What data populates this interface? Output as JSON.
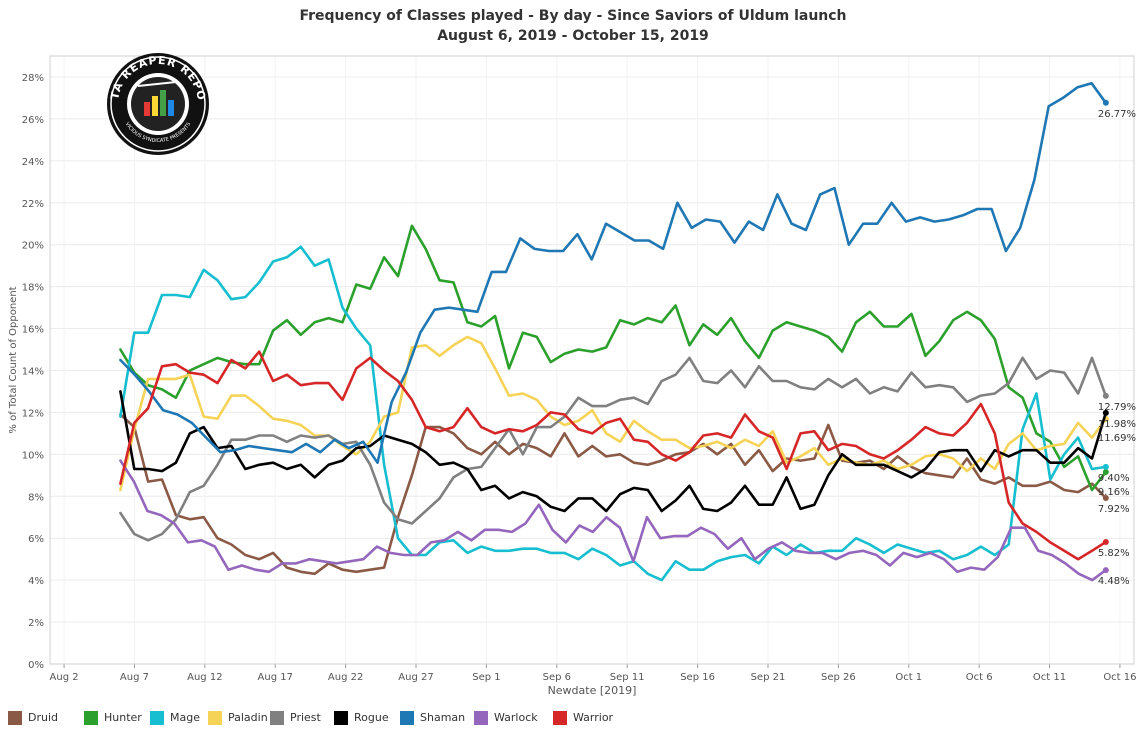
{
  "chart_data": {
    "type": "line",
    "title": "Frequency of Classes played - By day - Since Saviors of Uldum launch",
    "subtitle": "August 6, 2019 - October 15, 2019",
    "xlabel": "Newdate [2019]",
    "ylabel": "% of Total Count of Opponent",
    "x_start": "2019-08-06",
    "x_end": "2019-10-15",
    "xlim": [
      "2019-08-01",
      "2019-10-17"
    ],
    "ylim": [
      0,
      29
    ],
    "x_ticks": [
      "Aug 2",
      "Aug 7",
      "Aug 12",
      "Aug 17",
      "Aug 22",
      "Aug 27",
      "Sep 1",
      "Sep 6",
      "Sep 11",
      "Sep 16",
      "Sep 21",
      "Sep 26",
      "Oct 1",
      "Oct 6",
      "Oct 11",
      "Oct 16"
    ],
    "y_ticks": [
      "0%",
      "2%",
      "4%",
      "6%",
      "8%",
      "10%",
      "12%",
      "14%",
      "16%",
      "18%",
      "20%",
      "22%",
      "24%",
      "26%",
      "28%"
    ],
    "grid": true,
    "legend_position": "bottom",
    "series": [
      {
        "name": "Druid",
        "color": "#8B5A46",
        "end_label": "7.92%",
        "values": [
          11.9,
          11.3,
          8.7,
          8.8,
          7.1,
          6.9,
          7.0,
          6.0,
          5.7,
          5.2,
          5.0,
          5.3,
          4.6,
          4.4,
          4.3,
          4.8,
          4.5,
          4.4,
          4.5,
          4.6,
          7.0,
          9.0,
          11.3,
          11.3,
          11.0,
          10.3,
          10.0,
          10.6,
          10.0,
          10.5,
          10.3,
          9.9,
          11.0,
          9.9,
          10.4,
          9.9,
          10.0,
          9.6,
          9.5,
          9.7,
          10.0,
          10.1,
          10.5,
          10.0,
          10.5,
          9.5,
          10.2,
          9.2,
          9.8,
          9.7,
          9.8,
          11.4,
          9.7,
          9.6,
          9.7,
          9.3,
          9.9,
          9.4,
          9.1,
          9.0,
          8.9,
          9.8,
          8.8,
          8.6,
          8.9,
          8.5,
          8.5,
          8.7,
          8.3,
          8.2,
          8.6,
          7.92
        ]
      },
      {
        "name": "Hunter",
        "color": "#2CA02C",
        "end_label": "9.16%",
        "values": [
          15.0,
          13.9,
          13.3,
          13.1,
          12.7,
          14.0,
          14.3,
          14.6,
          14.4,
          14.3,
          14.3,
          15.9,
          16.4,
          15.7,
          16.3,
          16.5,
          16.3,
          18.1,
          17.9,
          19.4,
          18.5,
          20.9,
          19.8,
          18.3,
          18.2,
          16.3,
          16.1,
          16.6,
          14.1,
          15.8,
          15.6,
          14.4,
          14.8,
          15.0,
          14.9,
          15.1,
          16.4,
          16.2,
          16.5,
          16.3,
          17.1,
          15.2,
          16.2,
          15.7,
          16.5,
          15.4,
          14.6,
          15.9,
          16.3,
          16.1,
          15.9,
          15.6,
          14.9,
          16.3,
          16.8,
          16.1,
          16.1,
          16.7,
          14.7,
          15.4,
          16.4,
          16.8,
          16.4,
          15.5,
          13.2,
          12.7,
          11.0,
          10.6,
          9.4,
          9.9,
          8.3,
          9.16
        ]
      },
      {
        "name": "Mage",
        "color": "#17BECF",
        "end_label": "9.40%",
        "values": [
          11.8,
          15.8,
          15.8,
          17.6,
          17.6,
          17.5,
          18.8,
          18.3,
          17.4,
          17.5,
          18.2,
          19.2,
          19.4,
          19.9,
          19.0,
          19.3,
          17.0,
          16.0,
          15.2,
          9.5,
          6.0,
          5.2,
          5.2,
          5.8,
          5.9,
          5.3,
          5.6,
          5.4,
          5.4,
          5.5,
          5.5,
          5.3,
          5.3,
          5.0,
          5.5,
          5.2,
          4.7,
          4.9,
          4.3,
          4.0,
          4.9,
          4.5,
          4.5,
          4.9,
          5.1,
          5.2,
          4.8,
          5.6,
          5.2,
          5.7,
          5.3,
          5.4,
          5.4,
          6.0,
          5.7,
          5.3,
          5.7,
          5.5,
          5.3,
          5.4,
          5.0,
          5.2,
          5.6,
          5.2,
          5.7,
          11.2,
          12.9,
          8.8,
          10.0,
          10.8,
          9.3,
          9.4
        ]
      },
      {
        "name": "Paladin",
        "color": "#F5D357",
        "end_label": "11.69%",
        "values": [
          8.3,
          11.2,
          13.6,
          13.6,
          13.6,
          13.8,
          11.8,
          11.7,
          12.8,
          12.8,
          12.3,
          11.7,
          11.6,
          11.4,
          10.9,
          10.9,
          10.4,
          10.0,
          10.6,
          11.8,
          12.0,
          15.1,
          15.2,
          14.7,
          15.2,
          15.6,
          15.3,
          14.1,
          12.8,
          12.9,
          12.6,
          11.8,
          11.4,
          11.6,
          12.1,
          11.0,
          10.6,
          11.6,
          11.1,
          10.7,
          10.7,
          10.3,
          10.4,
          10.6,
          10.3,
          10.7,
          10.4,
          11.1,
          9.6,
          9.9,
          10.3,
          9.5,
          9.8,
          9.6,
          9.5,
          9.7,
          9.3,
          9.5,
          9.9,
          10.0,
          9.8,
          9.2,
          9.8,
          9.3,
          10.5,
          11.0,
          10.2,
          10.4,
          10.5,
          11.5,
          10.8,
          11.69
        ]
      },
      {
        "name": "Priest",
        "color": "#808080",
        "end_label": "12.79%",
        "values": [
          7.2,
          6.2,
          5.9,
          6.2,
          6.9,
          8.2,
          8.5,
          9.5,
          10.7,
          10.7,
          10.9,
          10.9,
          10.6,
          10.9,
          10.8,
          10.9,
          10.5,
          10.6,
          9.5,
          7.7,
          6.9,
          6.7,
          7.3,
          7.9,
          8.9,
          9.3,
          9.4,
          10.3,
          11.2,
          10.0,
          11.3,
          11.3,
          11.8,
          12.7,
          12.3,
          12.3,
          12.6,
          12.7,
          12.4,
          13.5,
          13.8,
          14.6,
          13.5,
          13.4,
          14.0,
          13.2,
          14.2,
          13.5,
          13.5,
          13.2,
          13.1,
          13.6,
          13.2,
          13.6,
          12.9,
          13.2,
          13.0,
          13.9,
          13.2,
          13.3,
          13.2,
          12.5,
          12.8,
          12.9,
          13.4,
          14.6,
          13.6,
          14.0,
          13.9,
          12.9,
          14.6,
          12.79
        ]
      },
      {
        "name": "Rogue",
        "color": "#000000",
        "end_label": "11.98%",
        "values": [
          13.0,
          9.3,
          9.3,
          9.2,
          9.6,
          11.0,
          11.3,
          10.3,
          10.4,
          9.3,
          9.5,
          9.6,
          9.3,
          9.5,
          8.9,
          9.5,
          9.7,
          10.3,
          10.4,
          10.9,
          10.7,
          10.5,
          10.1,
          9.5,
          9.6,
          9.3,
          8.3,
          8.5,
          7.9,
          8.2,
          8.0,
          7.5,
          7.3,
          7.9,
          7.9,
          7.3,
          8.1,
          8.4,
          8.3,
          7.3,
          7.8,
          8.5,
          7.4,
          7.3,
          7.7,
          8.5,
          7.6,
          7.6,
          8.9,
          7.4,
          7.6,
          9.0,
          10.0,
          9.5,
          9.5,
          9.5,
          9.2,
          8.9,
          9.3,
          10.1,
          10.2,
          10.2,
          9.2,
          10.2,
          9.9,
          10.2,
          10.2,
          9.6,
          9.6,
          10.3,
          9.8,
          11.98
        ]
      },
      {
        "name": "Shaman",
        "color": "#1F77B4",
        "end_label": "26.77%",
        "values": [
          14.5,
          13.8,
          13.0,
          12.1,
          11.9,
          11.5,
          10.8,
          10.1,
          10.2,
          10.4,
          10.3,
          10.2,
          10.1,
          10.5,
          10.1,
          10.7,
          10.3,
          10.6,
          9.6,
          12.5,
          13.9,
          15.8,
          16.9,
          17.0,
          16.9,
          16.8,
          18.7,
          18.7,
          20.3,
          19.8,
          19.7,
          19.7,
          20.5,
          19.3,
          21.0,
          20.6,
          20.2,
          20.2,
          19.8,
          22.0,
          20.8,
          21.2,
          21.1,
          20.1,
          21.1,
          20.7,
          22.4,
          21.0,
          20.7,
          22.4,
          22.7,
          20.0,
          21.0,
          21.0,
          22.0,
          21.1,
          21.3,
          21.1,
          21.2,
          21.4,
          21.7,
          21.7,
          19.7,
          20.8,
          23.1,
          26.6,
          27.0,
          27.5,
          27.7,
          26.77
        ]
      },
      {
        "name": "Warlock",
        "color": "#9467BD",
        "end_label": "4.48%",
        "values": [
          9.7,
          8.7,
          7.3,
          7.1,
          6.7,
          5.8,
          5.9,
          5.6,
          4.5,
          4.7,
          4.5,
          4.4,
          4.8,
          4.8,
          5.0,
          4.9,
          4.8,
          4.9,
          5.0,
          5.6,
          5.3,
          5.2,
          5.2,
          5.8,
          5.9,
          6.3,
          5.9,
          6.4,
          6.4,
          6.3,
          6.7,
          7.6,
          6.4,
          5.8,
          6.6,
          6.3,
          7.0,
          6.5,
          4.9,
          7.0,
          6.0,
          6.1,
          6.1,
          6.5,
          6.2,
          5.5,
          6.0,
          5.0,
          5.5,
          5.8,
          5.4,
          5.3,
          5.3,
          5.0,
          5.3,
          5.4,
          5.2,
          4.7,
          5.3,
          5.1,
          5.3,
          5.0,
          4.4,
          4.6,
          4.5,
          5.1,
          6.5,
          6.5,
          5.4,
          5.2,
          4.8,
          4.3,
          4.0,
          4.48
        ]
      },
      {
        "name": "Warrior",
        "color": "#D62728",
        "end_label": "5.82%",
        "values": [
          8.6,
          11.5,
          12.2,
          14.2,
          14.3,
          13.9,
          13.8,
          13.4,
          14.5,
          14.1,
          14.9,
          13.5,
          13.8,
          13.3,
          13.4,
          13.4,
          12.6,
          14.1,
          14.6,
          14.0,
          13.5,
          12.6,
          11.3,
          11.1,
          11.3,
          12.2,
          11.3,
          11.0,
          11.2,
          11.1,
          11.4,
          12.0,
          11.9,
          11.2,
          11.0,
          11.5,
          11.7,
          10.7,
          10.6,
          10.0,
          9.7,
          10.1,
          10.9,
          11.0,
          10.8,
          11.9,
          11.1,
          10.8,
          9.3,
          11.0,
          11.1,
          10.2,
          10.5,
          10.4,
          10.0,
          9.8,
          10.2,
          10.7,
          11.3,
          11.0,
          10.9,
          11.5,
          12.4,
          11.0,
          7.7,
          6.7,
          6.3,
          5.8,
          5.4,
          5.0,
          5.4,
          5.82
        ]
      }
    ]
  },
  "logo": {
    "text": "DATA REAPER REPORT",
    "subtext": "VICIOUS SYNDICATE PRESENTS"
  }
}
